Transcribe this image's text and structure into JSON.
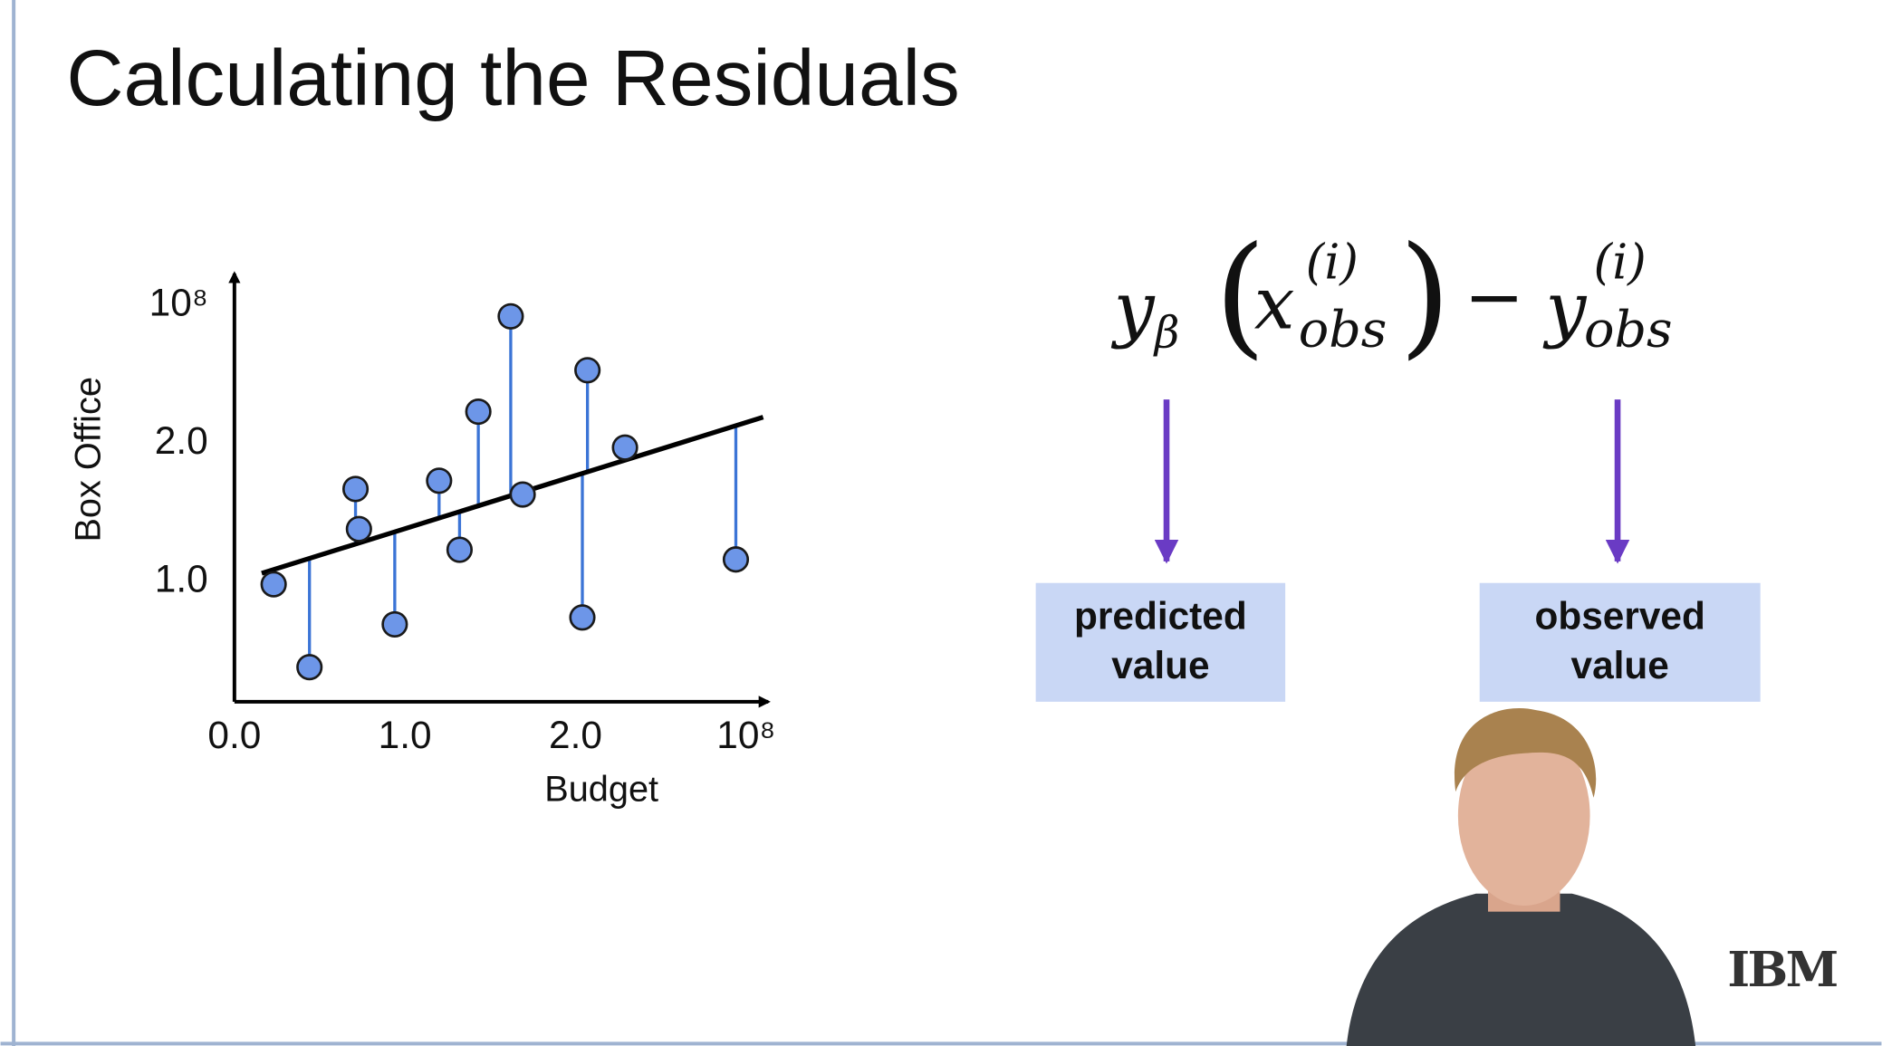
{
  "slide": {
    "title": "Calculating the Residuals",
    "formula": {
      "y": "y",
      "beta": "β",
      "x": "x",
      "sup": "(i)",
      "sub": "obs",
      "minus": "−"
    },
    "boxes": [
      {
        "line1": "predicted",
        "line2": "value"
      },
      {
        "line1": "observed",
        "line2": "value"
      }
    ],
    "logo": "IBM"
  },
  "chart_data": {
    "type": "scatter",
    "xlabel": "Budget",
    "ylabel": "Box Office",
    "xlim": [
      0,
      3.13
    ],
    "ylim": [
      0.13,
      3.23
    ],
    "xticks": [
      {
        "value": 0,
        "label": "0.0"
      },
      {
        "value": 1,
        "label": "1.0"
      },
      {
        "value": 2,
        "label": "2.0"
      },
      {
        "value": 3,
        "label": "10⁸"
      }
    ],
    "yticks": [
      {
        "value": 1,
        "label": "1.0"
      },
      {
        "value": 2,
        "label": "2.0"
      },
      {
        "value": 3,
        "label": "10⁸"
      }
    ],
    "grid": false,
    "point_color": "#6d96e8",
    "stem_color": "#3b74d6",
    "fit_color": "#000000",
    "fit": {
      "x": [
        0.16,
        3.1
      ],
      "y": [
        1.06,
        2.19
      ]
    },
    "x": [
      0.23,
      0.44,
      0.71,
      0.73,
      0.94,
      1.2,
      1.32,
      1.43,
      1.62,
      1.69,
      2.04,
      2.07,
      2.29,
      2.94
    ],
    "series": [
      {
        "name": "observed",
        "values": [
          0.98,
          0.38,
          1.67,
          1.38,
          0.69,
          1.73,
          1.23,
          2.23,
          2.92,
          1.63,
          0.74,
          2.53,
          1.97,
          1.16
        ]
      },
      {
        "name": "predicted",
        "values": [
          1.09,
          1.17,
          1.27,
          1.28,
          1.36,
          1.46,
          1.51,
          1.55,
          1.62,
          1.65,
          1.78,
          1.79,
          1.88,
          2.13
        ]
      }
    ]
  }
}
